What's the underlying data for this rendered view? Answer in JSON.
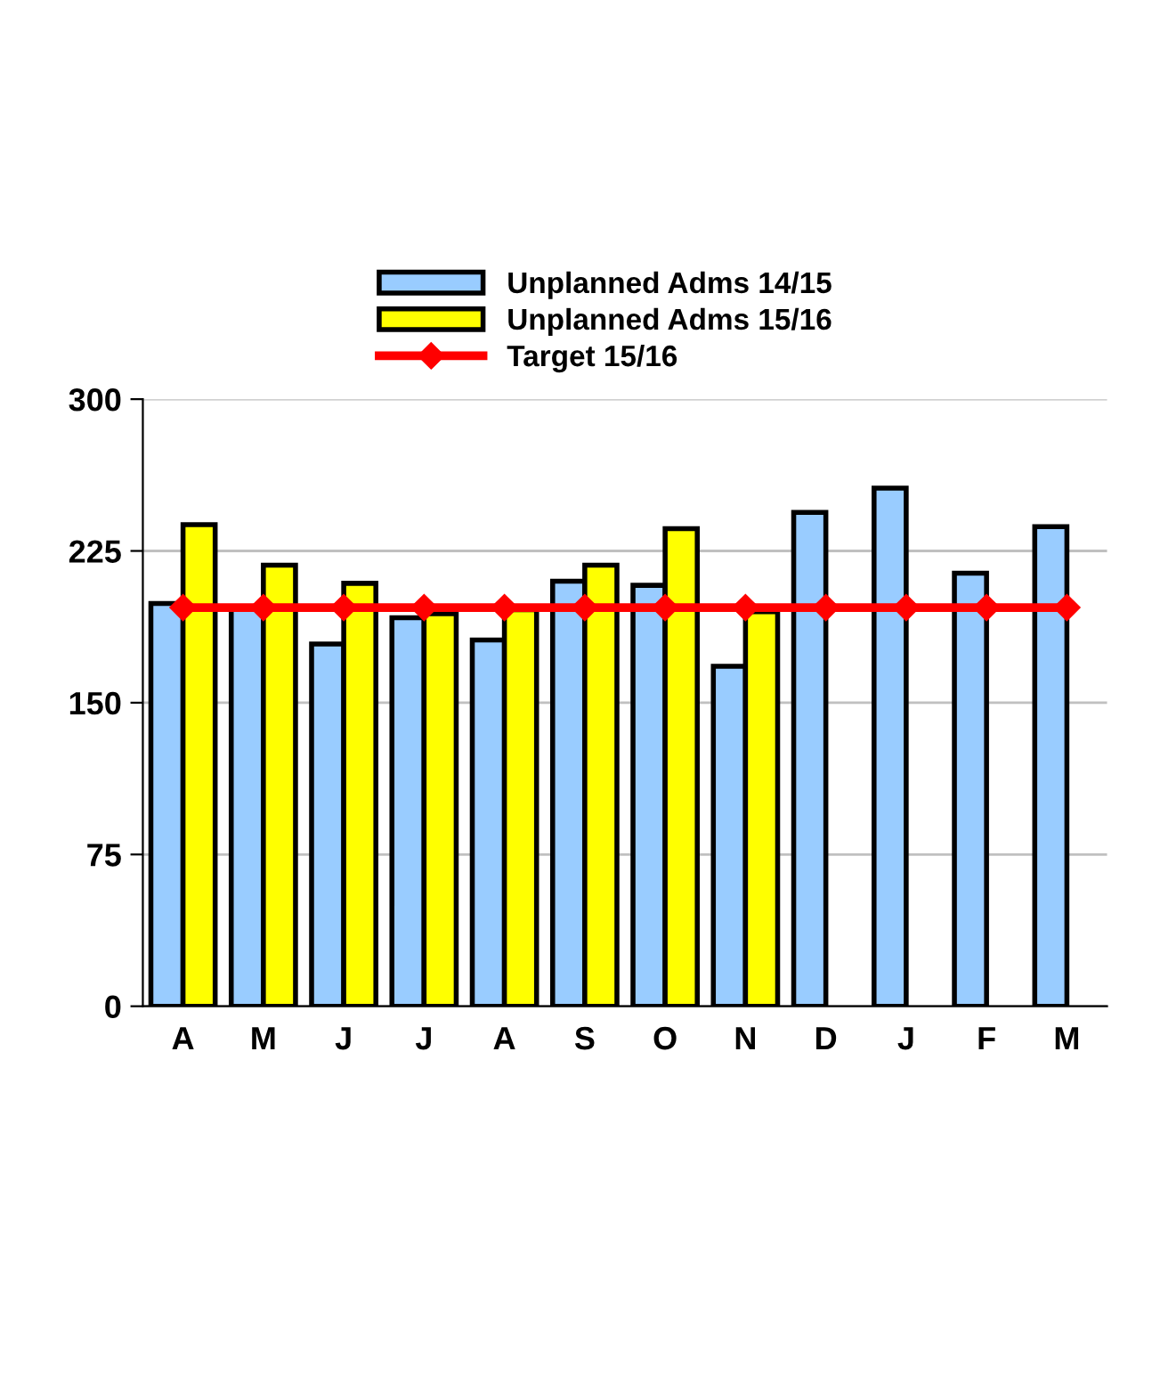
{
  "chart_data": {
    "type": "bar",
    "categories": [
      "A",
      "M",
      "J",
      "J",
      "A",
      "S",
      "O",
      "N",
      "D",
      "J",
      "F",
      "M"
    ],
    "series": [
      {
        "name": "Unplanned Adms 14/15",
        "color": "#99ccff",
        "values": [
          199,
          197,
          179,
          192,
          181,
          210,
          208,
          168,
          244,
          256,
          214,
          237
        ]
      },
      {
        "name": "Unplanned Adms 15/16",
        "color": "#ffff00",
        "values": [
          238,
          218,
          209,
          194,
          196,
          218,
          236,
          195,
          null,
          null,
          null,
          null
        ]
      },
      {
        "name": "Target 15/16",
        "type": "line",
        "color": "#ff0000",
        "marker": "diamond",
        "values": [
          197,
          197,
          197,
          197,
          197,
          197,
          197,
          197,
          197,
          197,
          197,
          197
        ]
      }
    ],
    "ylim": [
      0,
      300
    ],
    "yticks": [
      0,
      75,
      150,
      225,
      300
    ],
    "grid": "y",
    "legend": "top"
  }
}
